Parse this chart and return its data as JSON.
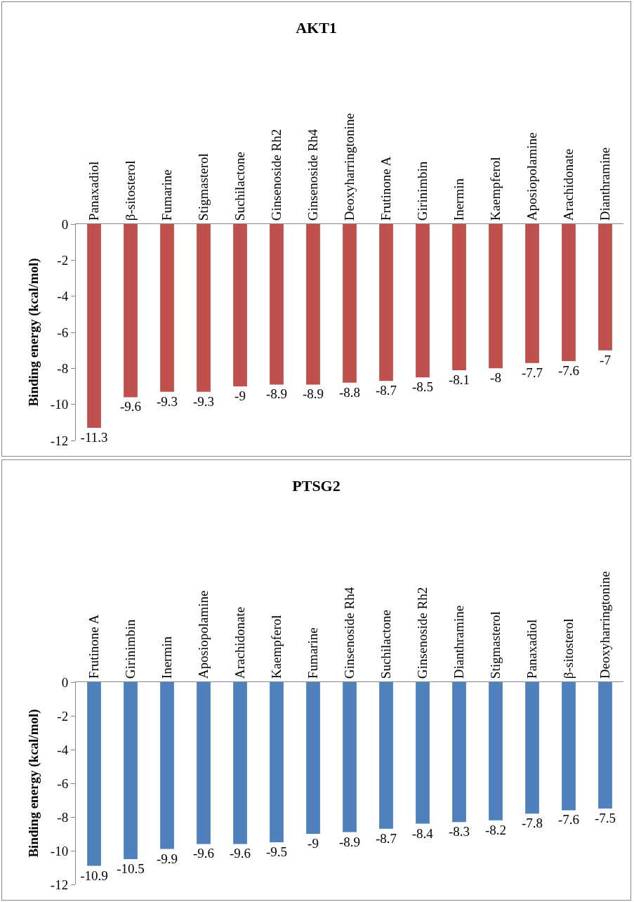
{
  "chart_data": [
    {
      "type": "bar",
      "title": "AKT1",
      "ylabel": "Binding energy (kcal/mol)",
      "categories": [
        "Panaxadiol",
        "β-sitosterol",
        "Fumarine",
        "Stigmasterol",
        "Suchilactone",
        "Ginsenoside Rh2",
        "Ginsenoside Rh4",
        "Deoxyharringtonine",
        "Frutinone A",
        "Girinimbin",
        "Inermin",
        "Kaempferol",
        "Aposiopolamine",
        "Arachidonate",
        "Dianthramine"
      ],
      "values": [
        -11.3,
        -9.6,
        -9.3,
        -9.3,
        -9,
        -8.9,
        -8.9,
        -8.8,
        -8.7,
        -8.5,
        -8.1,
        -8,
        -7.7,
        -7.6,
        -7
      ],
      "color": "#c0504d",
      "ylim": [
        -12,
        0
      ],
      "yticks": [
        0,
        -2,
        -4,
        -6,
        -8,
        -10,
        -12
      ],
      "grid": false,
      "legend": false,
      "data_labels": true
    },
    {
      "type": "bar",
      "title": "PTSG2",
      "ylabel": "Binding energy (kcal/mol)",
      "categories": [
        "Frutinone A",
        "Girinimbin",
        "Inermin",
        "Aposiopolamine",
        "Arachidonate",
        "Kaempferol",
        "Fumarine",
        "Ginsenoside Rh4",
        "Suchilactone",
        "Ginsenoside Rh2",
        "Dianthramine",
        "Stigmasterol",
        "Panaxadiol",
        "β-sitosterol",
        "Deoxyharringtonine"
      ],
      "values": [
        -10.9,
        -10.5,
        -9.9,
        -9.6,
        -9.6,
        -9.5,
        -9,
        -8.9,
        -8.7,
        -8.4,
        -8.3,
        -8.2,
        -7.8,
        -7.6,
        -7.5
      ],
      "color": "#4f81bd",
      "ylim": [
        -12,
        0
      ],
      "yticks": [
        0,
        -2,
        -4,
        -6,
        -8,
        -10,
        -12
      ],
      "grid": false,
      "legend": false,
      "data_labels": true
    }
  ]
}
